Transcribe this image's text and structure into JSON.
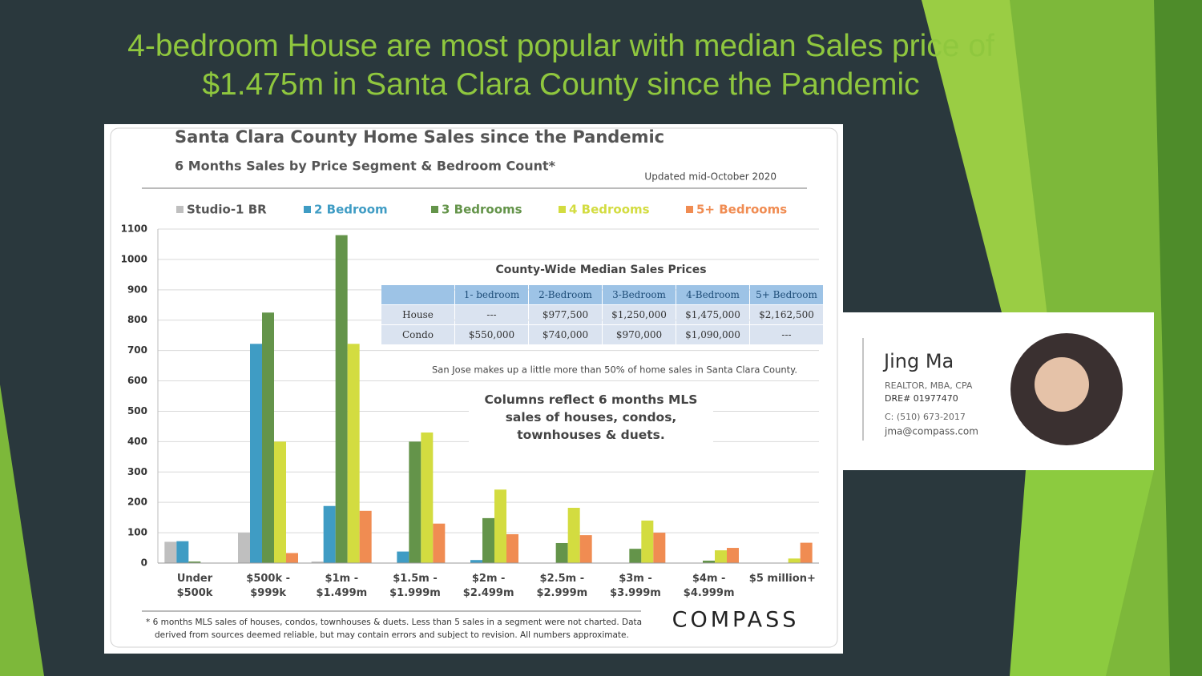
{
  "slide": {
    "title": "4-bedroom House are most popular with median Sales price of $1.475m in Santa Clara County since the Pandemic"
  },
  "chart_data": {
    "type": "bar",
    "title": "Santa Clara County Home Sales since the Pandemic",
    "subtitle": "6 Months Sales by Price Segment & Bedroom Count*",
    "note": "Updated mid-October 2020",
    "annotations": [
      "San Jose makes up a little more than 50% of home sales in Santa Clara County.",
      "Columns reflect 6 months MLS sales of houses, condos, townhouses & duets."
    ],
    "footnote": "* 6 months MLS sales of houses, condos, townhouses & duets. Less than 5 sales in a segment were not charted. Data derived from sources deemed reliable, but may contain errors and subject to revision. All numbers approximate.",
    "categories": [
      "Under\n$500k",
      "$500k -\n$999k",
      "$1m -\n$1.499m",
      "$1.5m -\n$1.999m",
      "$2m -\n$2.499m",
      "$2.5m -\n$2.999m",
      "$3m -\n$3.999m",
      "$4m -\n$4.999m",
      "$5 million+"
    ],
    "series": [
      {
        "name": "Studio-1 BR",
        "color": "#bfbfbf",
        "values": [
          70,
          100,
          5,
          null,
          null,
          null,
          null,
          null,
          null
        ]
      },
      {
        "name": "2 Bedroom",
        "color": "#3f9cc4",
        "values": [
          72,
          722,
          188,
          38,
          10,
          null,
          null,
          null,
          null
        ]
      },
      {
        "name": "3 Bedrooms",
        "color": "#64944a",
        "values": [
          5,
          825,
          1080,
          400,
          148,
          66,
          47,
          8,
          null
        ]
      },
      {
        "name": "4 Bedrooms",
        "color": "#d3dc40",
        "values": [
          null,
          400,
          722,
          430,
          242,
          182,
          140,
          42,
          15
        ]
      },
      {
        "name": "5+ Bedrooms",
        "color": "#f08c52",
        "values": [
          null,
          33,
          172,
          130,
          95,
          92,
          100,
          50,
          67
        ]
      }
    ],
    "ylim": [
      0,
      1100
    ],
    "yticks": [
      0,
      100,
      200,
      300,
      400,
      500,
      600,
      700,
      800,
      900,
      1000,
      1100
    ],
    "grid": true
  },
  "table": {
    "title": "County-Wide  Median Sales Prices",
    "columns": [
      "1- bedroom",
      "2-Bedroom",
      "3-Bedroom",
      "4-Bedroom",
      "5+ Bedroom"
    ],
    "rows": [
      {
        "label": "House",
        "cells": [
          "---",
          "$977,500",
          "$1,250,000",
          "$1,475,000",
          "$2,162,500"
        ]
      },
      {
        "label": "Condo",
        "cells": [
          "$550,000",
          "$740,000",
          "$970,000",
          "$1,090,000",
          "---"
        ]
      }
    ]
  },
  "logo": "COMPASS",
  "card": {
    "name": "Jing Ma",
    "lines": [
      "REALTOR, MBA, CPA",
      "DRE# 01977470",
      "C: (510) 673-2017",
      "jma@compass.com"
    ]
  }
}
